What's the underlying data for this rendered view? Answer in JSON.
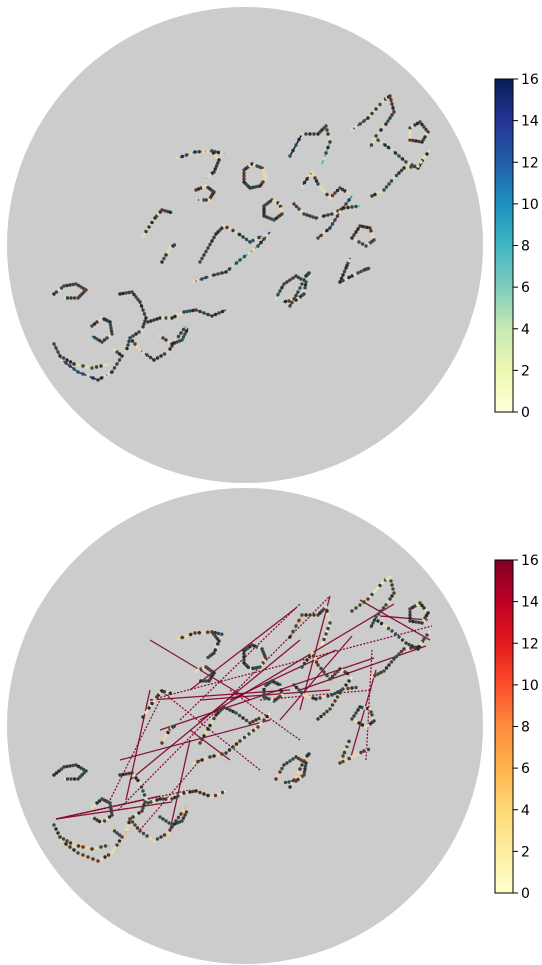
{
  "chart_data": [
    {
      "type": "scatter",
      "title": "",
      "xlabel": "",
      "ylabel": "",
      "grid": false,
      "colorbar": {
        "cmap": "YlGnBu",
        "vmin": 0,
        "vmax": 16,
        "ticks": [
          0,
          2,
          4,
          6,
          8,
          10,
          12,
          14,
          16
        ],
        "tick_labels": [
          "0",
          "2",
          "4",
          "6",
          "8",
          "10",
          "12",
          "14",
          "16"
        ],
        "stops": [
          "#ffffd9",
          "#edf8b1",
          "#c7e9b4",
          "#7fcdbb",
          "#41b6c4",
          "#1d91c0",
          "#225ea8",
          "#253494",
          "#081d58"
        ]
      },
      "background_color": "#cccccc"
    },
    {
      "type": "scatter",
      "title": "",
      "xlabel": "",
      "ylabel": "",
      "grid": false,
      "colorbar": {
        "cmap": "YlOrRd",
        "vmin": 0,
        "vmax": 16,
        "ticks": [
          0,
          2,
          4,
          6,
          8,
          10,
          12,
          14,
          16
        ],
        "tick_labels": [
          "0",
          "2",
          "4",
          "6",
          "8",
          "10",
          "12",
          "14",
          "16"
        ],
        "stops": [
          "#ffffcc",
          "#ffeda0",
          "#fed976",
          "#feb24c",
          "#fd8d3c",
          "#fc4e2a",
          "#e31a1c",
          "#bd0026",
          "#800026"
        ]
      },
      "background_color": "#cccccc"
    }
  ]
}
